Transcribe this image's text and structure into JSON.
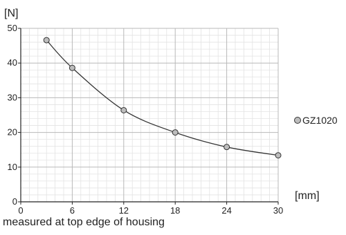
{
  "chart_data": {
    "type": "line",
    "xlabel": "[mm]",
    "ylabel": "[N]",
    "x_ticks": [
      0,
      6,
      12,
      18,
      24,
      30
    ],
    "y_ticks": [
      0,
      10,
      20,
      30,
      40,
      50
    ],
    "xlim": [
      0,
      30
    ],
    "ylim": [
      0,
      50
    ],
    "grid": true,
    "legend_position": "right",
    "series": [
      {
        "name": "GZ1020",
        "marker_color": "#bdbdbd",
        "line_color": "#333333",
        "x": [
          3,
          6,
          12,
          18,
          24,
          30
        ],
        "y": [
          46.6,
          38.6,
          26.4,
          20.0,
          15.8,
          13.4
        ]
      }
    ],
    "note": "measured at top edge of housing"
  }
}
